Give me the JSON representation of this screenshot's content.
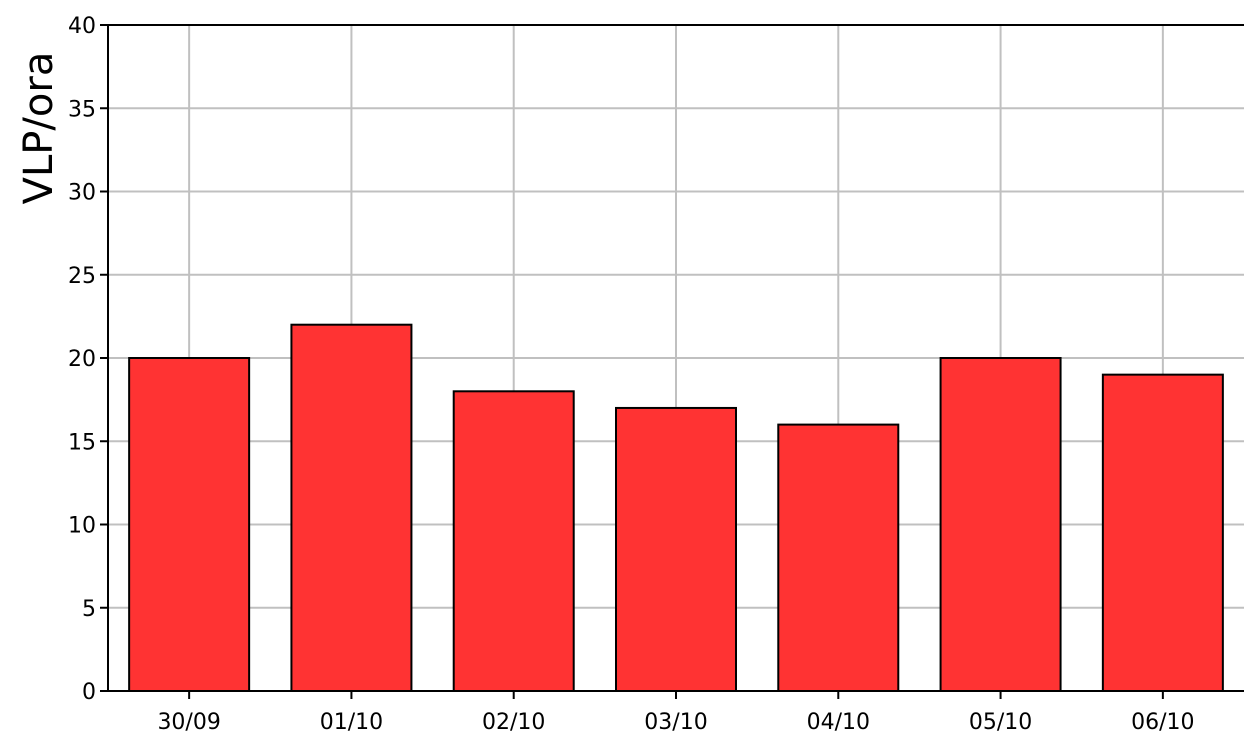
{
  "chart_data": {
    "type": "bar",
    "title": "",
    "xlabel": "",
    "ylabel": "VLP/ora",
    "categories": [
      "30/09",
      "01/10",
      "02/10",
      "03/10",
      "04/10",
      "05/10",
      "06/10"
    ],
    "values": [
      20,
      22,
      18,
      17,
      16,
      20,
      19
    ],
    "ylim": [
      0,
      40
    ],
    "yticks": [
      "0",
      "5",
      "10",
      "15",
      "20",
      "25",
      "30",
      "35",
      "40"
    ],
    "grid": true,
    "legend": "none",
    "colors": {
      "bar_fill": "#ff3333",
      "bar_stroke": "#000000",
      "grid": "#c0c0c0",
      "axis": "#000000"
    }
  }
}
